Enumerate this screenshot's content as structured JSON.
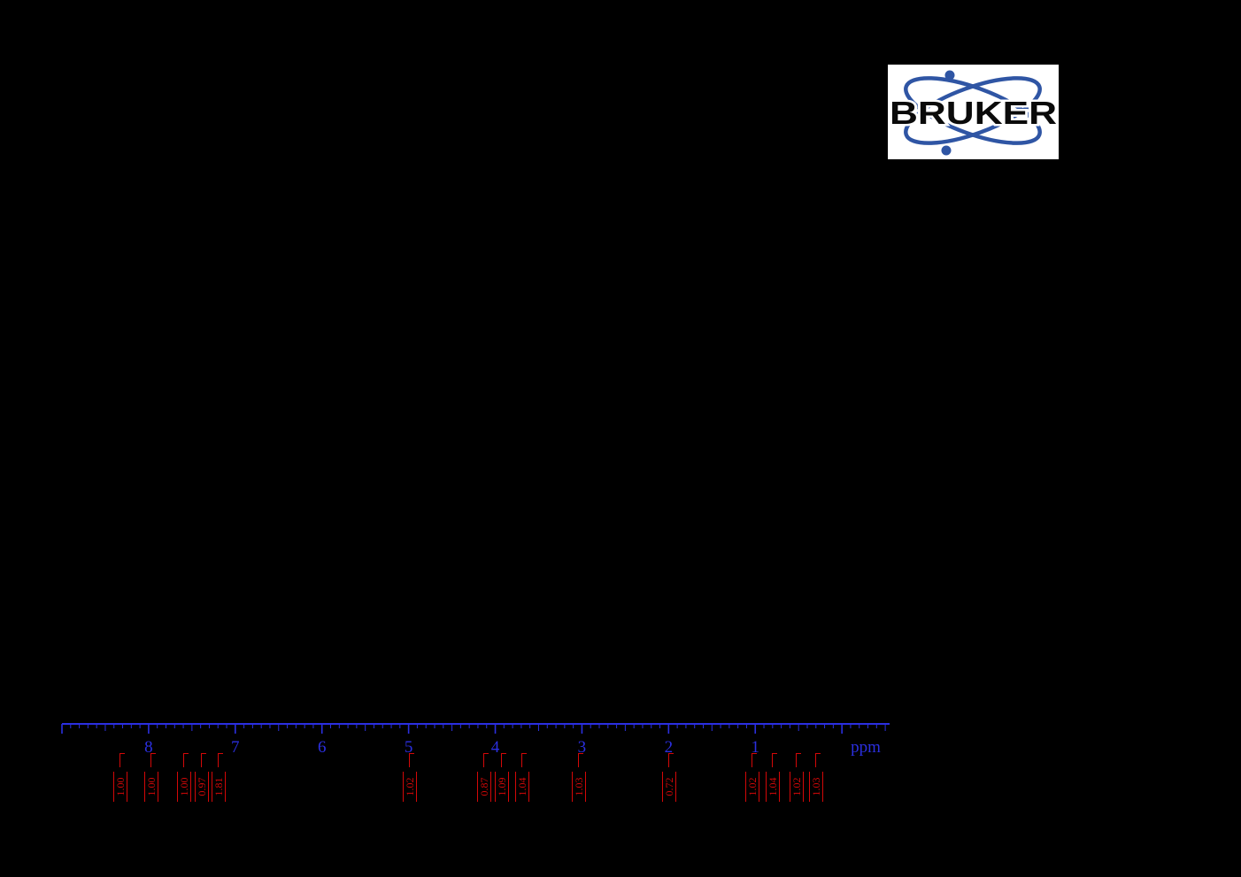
{
  "page": {
    "background": "#000000"
  },
  "logo": {
    "text": "BRUKER",
    "box_color": "#ffffff",
    "orbit_color": "#2f55a4",
    "dot_color": "#2f55a4",
    "text_color": "#0a0a0a"
  },
  "chart_data": {
    "type": "line",
    "description": "1H NMR spectrum printout; spectrum trace not visible against black background; calibrated chemical-shift axis with integral values printed below",
    "xlabel": "ppm",
    "axis": {
      "unit_label": "ppm",
      "min_ppm": -0.55,
      "max_ppm": 9.0,
      "major_ticks": [
        "8",
        "7",
        "6",
        "5",
        "4",
        "3",
        "2",
        "1"
      ],
      "minor_tick_interval": 0.1,
      "color": "#2b2fe0"
    },
    "integral_color": "#d40808",
    "integrals": [
      {
        "ppm": 8.33,
        "value": "1.00"
      },
      {
        "ppm": 7.97,
        "value": "1.00"
      },
      {
        "ppm": 7.59,
        "value": "1.00"
      },
      {
        "ppm": 7.39,
        "value": "0.97"
      },
      {
        "ppm": 7.19,
        "value": "1.81"
      },
      {
        "ppm": 4.99,
        "value": "1.02"
      },
      {
        "ppm": 4.13,
        "value": "0.87"
      },
      {
        "ppm": 3.92,
        "value": "1.09"
      },
      {
        "ppm": 3.69,
        "value": "1.04"
      },
      {
        "ppm": 3.03,
        "value": "1.03"
      },
      {
        "ppm": 1.99,
        "value": "0.72"
      },
      {
        "ppm": 1.03,
        "value": "1.02"
      },
      {
        "ppm": 0.8,
        "value": "1.04"
      },
      {
        "ppm": 0.52,
        "value": "1.02"
      },
      {
        "ppm": 0.3,
        "value": "1.03"
      }
    ]
  }
}
